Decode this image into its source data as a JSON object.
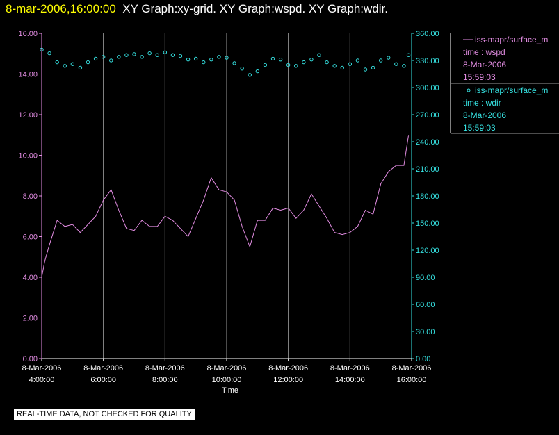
{
  "title": {
    "timestamp": "8-mar-2006,16:00:00",
    "graphs": "XY Graph:xy-grid.  XY Graph:wspd.  XY Graph:wdir."
  },
  "colors": {
    "wspd": "#e38de3",
    "wdir": "#36e3e3",
    "grid": "#9a9a9a",
    "axis_text": "#ffffff"
  },
  "legend": [
    {
      "marker": "line",
      "name": "iss-mapr/surface_m",
      "field": "time : wspd",
      "date": "8-Mar-2006",
      "time": "15:59:03"
    },
    {
      "marker": "circle",
      "name": "iss-mapr/surface_m",
      "field": "time : wdir",
      "date": "8-Mar-2006",
      "time": "15:59:03"
    }
  ],
  "quality_note": "REAL-TIME DATA, NOT CHECKED FOR QUALITY",
  "chart_data": {
    "type": "line",
    "xlabel": "Time",
    "x_range_hours": [
      4,
      16
    ],
    "x_ticks": [
      {
        "hour": 4,
        "date": "8-Mar-2006",
        "time": "4:00:00"
      },
      {
        "hour": 6,
        "date": "8-Mar-2006",
        "time": "6:00:00"
      },
      {
        "hour": 8,
        "date": "8-Mar-2006",
        "time": "8:00:00"
      },
      {
        "hour": 10,
        "date": "8-Mar-2006",
        "time": "10:00:00"
      },
      {
        "hour": 12,
        "date": "8-Mar-2006",
        "time": "12:00:00"
      },
      {
        "hour": 14,
        "date": "8-Mar-2006",
        "time": "14:00:00"
      },
      {
        "hour": 16,
        "date": "8-Mar-2006",
        "time": "16:00:00"
      }
    ],
    "y_left": {
      "range": [
        0,
        16
      ],
      "ticks": [
        "0.00",
        "2.00",
        "4.00",
        "6.00",
        "8.00",
        "10.00",
        "12.00",
        "14.00",
        "16.00"
      ]
    },
    "y_right": {
      "range": [
        0,
        360
      ],
      "ticks": [
        "0.00",
        "30.00",
        "60.00",
        "90.00",
        "120.00",
        "150.00",
        "180.00",
        "210.00",
        "240.00",
        "270.00",
        "300.00",
        "330.00",
        "360.00"
      ]
    },
    "grid": "vertical",
    "series": [
      {
        "field": "wspd",
        "axis": "left",
        "style": "line",
        "x": [
          4.0,
          4.1,
          4.25,
          4.5,
          4.75,
          5.0,
          5.25,
          5.5,
          5.75,
          6.0,
          6.25,
          6.5,
          6.75,
          7.0,
          7.25,
          7.5,
          7.75,
          8.0,
          8.25,
          8.5,
          8.75,
          9.0,
          9.25,
          9.5,
          9.75,
          10.0,
          10.25,
          10.5,
          10.75,
          11.0,
          11.25,
          11.5,
          11.75,
          12.0,
          12.25,
          12.5,
          12.75,
          13.0,
          13.25,
          13.5,
          13.75,
          14.0,
          14.25,
          14.5,
          14.75,
          15.0,
          15.25,
          15.5,
          15.75,
          15.9
        ],
        "y": [
          4.0,
          4.8,
          5.6,
          6.8,
          6.5,
          6.6,
          6.2,
          6.6,
          7.0,
          7.8,
          8.3,
          7.3,
          6.4,
          6.3,
          6.8,
          6.5,
          6.5,
          7.0,
          6.8,
          6.4,
          6.0,
          6.9,
          7.8,
          8.9,
          8.3,
          8.2,
          7.8,
          6.5,
          5.5,
          6.8,
          6.8,
          7.4,
          7.3,
          7.4,
          6.9,
          7.3,
          8.1,
          7.5,
          6.9,
          6.2,
          6.1,
          6.2,
          6.5,
          7.3,
          7.1,
          8.6,
          9.2,
          9.5,
          9.5,
          11.0
        ]
      },
      {
        "field": "wdir",
        "axis": "right",
        "style": "points",
        "x": [
          4.0,
          4.25,
          4.5,
          4.75,
          5.0,
          5.25,
          5.5,
          5.75,
          6.0,
          6.25,
          6.5,
          6.75,
          7.0,
          7.25,
          7.5,
          7.75,
          8.0,
          8.25,
          8.5,
          8.75,
          9.0,
          9.25,
          9.5,
          9.75,
          10.0,
          10.25,
          10.5,
          10.75,
          11.0,
          11.25,
          11.5,
          11.75,
          12.0,
          12.25,
          12.5,
          12.75,
          13.0,
          13.25,
          13.5,
          13.75,
          14.0,
          14.25,
          14.5,
          14.75,
          15.0,
          15.25,
          15.5,
          15.75,
          15.9
        ],
        "y": [
          342,
          338,
          328,
          324,
          326,
          322,
          328,
          332,
          334,
          330,
          334,
          336,
          337,
          334,
          338,
          336,
          339,
          336,
          335,
          331,
          332,
          328,
          331,
          334,
          333,
          327,
          321,
          314,
          318,
          325,
          332,
          331,
          325,
          324,
          328,
          331,
          336,
          328,
          324,
          322,
          326,
          330,
          320,
          322,
          330,
          333,
          326,
          324,
          336
        ]
      }
    ]
  }
}
